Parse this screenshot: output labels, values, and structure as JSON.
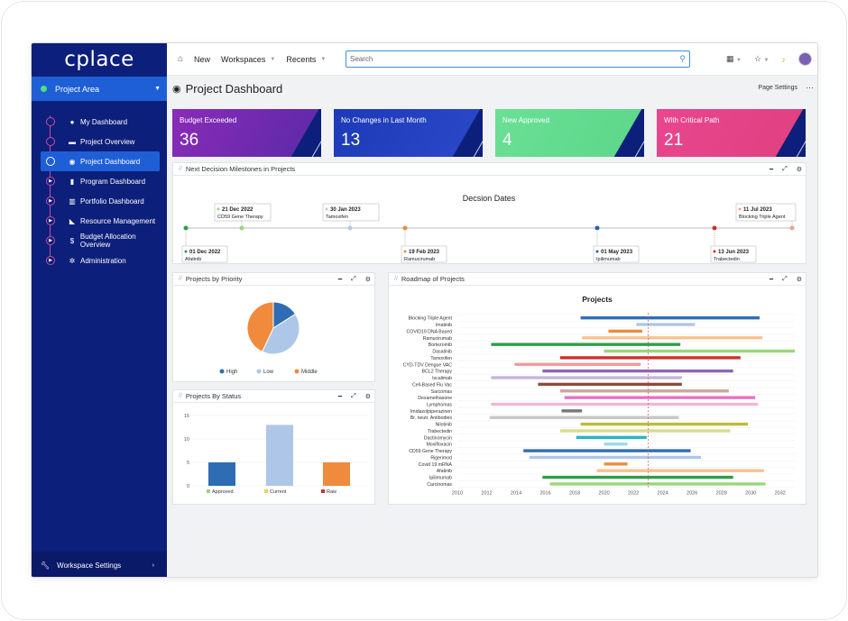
{
  "app": {
    "logo": "cplace"
  },
  "sidebar": {
    "area_label": "Project Area",
    "items": [
      {
        "label": "My Dashboard",
        "icon": "user-circle-icon",
        "ico": "●"
      },
      {
        "label": "Project Overview",
        "icon": "folder-icon",
        "ico": "▬"
      },
      {
        "label": "Project Dashboard",
        "icon": "gauge-icon",
        "ico": "◉",
        "active": true
      },
      {
        "label": "Program Dashboard",
        "icon": "book-icon",
        "ico": "▮"
      },
      {
        "label": "Portfolio Dashboard",
        "icon": "binders-icon",
        "ico": "▥"
      },
      {
        "label": "Resource Management",
        "icon": "area-chart-icon",
        "ico": "◣"
      },
      {
        "label": "Budget Allocation Overview",
        "icon": "dollar-icon",
        "ico": "$"
      },
      {
        "label": "Administration",
        "icon": "gears-icon",
        "ico": "✲"
      }
    ],
    "workspace_settings": "Workspace Settings"
  },
  "topbar": {
    "new": "New",
    "workspaces": "Workspaces",
    "recents": "Recents",
    "search_placeholder": "Search"
  },
  "page": {
    "title": "Project Dashboard",
    "settings": "Page Settings"
  },
  "kpis": [
    {
      "label": "Budget Exceeded",
      "value": "36",
      "color": "#8a2bb8",
      "color2": "#5a2aa8"
    },
    {
      "label": "No Changes in Last Month",
      "value": "13",
      "color": "#1d3ab8",
      "color2": "#2a49c8"
    },
    {
      "label": "New Approved",
      "value": "4",
      "color": "#6ae095",
      "color2": "#5cd68a"
    },
    {
      "label": "With Critical Path",
      "value": "21",
      "color": "#e8468f",
      "color2": "#e0407f"
    }
  ],
  "milestones": {
    "panel_title": "Next Decision Milestones in Projects",
    "chart_title": "Decsion Dates",
    "above": [
      {
        "date": "21 Dec 2022",
        "name": "CD59 Gene Therapy",
        "color": "#9ad67a"
      },
      {
        "date": "30 Jan 2023",
        "name": "Tamoxifen",
        "color": "#b5c8e8"
      },
      {
        "date": "11 Jul 2023",
        "name": "Blocking Triple Agent",
        "color": "#f3a08a"
      }
    ],
    "below": [
      {
        "date": "01 Dec 2022",
        "name": "Afatinib",
        "color": "#2e9e4a"
      },
      {
        "date": "19 Feb 2023",
        "name": "Ramucirumab",
        "color": "#f08a3c"
      },
      {
        "date": "01 May 2023",
        "name": "Ipilimumab",
        "color": "#2c5fb0"
      },
      {
        "date": "13 Jun 2023",
        "name": "Trabectedin",
        "color": "#c8332e"
      }
    ]
  },
  "priority": {
    "panel_title": "Projects by Priority",
    "legend": [
      "High",
      "Low",
      "Middle"
    ]
  },
  "status": {
    "panel_title": "Projects By Status",
    "legend": [
      "Approved",
      "Current",
      "Raw"
    ]
  },
  "roadmap": {
    "panel_title": "Roadmap of Projects"
  },
  "chart_data": [
    {
      "type": "pie",
      "labels": [
        "High",
        "Low",
        "Middle"
      ],
      "values": [
        16,
        41,
        43
      ],
      "colors": [
        "#2e6db3",
        "#aec7e8",
        "#f08a3c"
      ]
    },
    {
      "type": "bar",
      "categories": [
        "Approved",
        "Current",
        "Raw"
      ],
      "values": [
        5,
        13,
        5
      ],
      "colors": [
        "#2e6db3",
        "#aec7e8",
        "#f08a3c"
      ],
      "yticks": [
        0,
        5,
        10,
        15
      ],
      "ylim": [
        0,
        15
      ]
    },
    {
      "type": "bar",
      "title": "Projects",
      "xticks": [
        2010,
        2012,
        2014,
        2016,
        2018,
        2020,
        2022,
        2024,
        2026,
        2028,
        2030,
        2032
      ],
      "xlim": [
        2010,
        2033
      ],
      "today": 2023.0,
      "series": [
        {
          "name": "Blocking Triple Agent",
          "start": 2018.4,
          "end": 2030.6,
          "color": "#2e6db3"
        },
        {
          "name": "Imatinib",
          "start": 2022.2,
          "end": 2026.2,
          "color": "#aec7e8"
        },
        {
          "name": "COVID19 DNA Based",
          "start": 2020.3,
          "end": 2022.6,
          "color": "#f08a3c"
        },
        {
          "name": "Ramucirumab",
          "start": 2018.5,
          "end": 2030.8,
          "color": "#f8c291"
        },
        {
          "name": "Bortezomib",
          "start": 2012.3,
          "end": 2025.2,
          "color": "#2e9e4a"
        },
        {
          "name": "Dasatinib",
          "start": 2020.0,
          "end": 2033.0,
          "color": "#9ad67a"
        },
        {
          "name": "Tamoxifen",
          "start": 2017.0,
          "end": 2029.3,
          "color": "#c8332e"
        },
        {
          "name": "CYD-TDV Dengue VAC",
          "start": 2013.9,
          "end": 2022.5,
          "color": "#f39a9a"
        },
        {
          "name": "BCL2 Therapy",
          "start": 2015.8,
          "end": 2028.8,
          "color": "#8e67b5"
        },
        {
          "name": "Iscalimab",
          "start": 2012.3,
          "end": 2025.3,
          "color": "#c6b4dc"
        },
        {
          "name": "Cell-Based Flu Vac",
          "start": 2015.5,
          "end": 2025.3,
          "color": "#8c4a3d"
        },
        {
          "name": "Sarcomas",
          "start": 2017.0,
          "end": 2028.5,
          "color": "#c9a8a0"
        },
        {
          "name": "Dexamethasone",
          "start": 2017.3,
          "end": 2030.3,
          "color": "#e872c4"
        },
        {
          "name": "Lymphomas",
          "start": 2012.3,
          "end": 2030.5,
          "color": "#f2b6d6"
        },
        {
          "name": "Imidazolpiperazinen",
          "start": 2017.1,
          "end": 2018.5,
          "color": "#777777"
        },
        {
          "name": "Br. neutr. Antibodies",
          "start": 2012.2,
          "end": 2025.1,
          "color": "#c7c7c7"
        },
        {
          "name": "Nilotinib",
          "start": 2018.4,
          "end": 2029.8,
          "color": "#bcbd3a"
        },
        {
          "name": "Trabectedin",
          "start": 2017.0,
          "end": 2028.6,
          "color": "#dbdb8d"
        },
        {
          "name": "Dactinomycin",
          "start": 2018.1,
          "end": 2022.9,
          "color": "#2ab4c7"
        },
        {
          "name": "Moxifloxacin",
          "start": 2020.0,
          "end": 2021.6,
          "color": "#9edae5"
        },
        {
          "name": "CD59 Gene Therapy",
          "start": 2014.5,
          "end": 2025.9,
          "color": "#2e6db3"
        },
        {
          "name": "Rigerimod",
          "start": 2014.9,
          "end": 2026.6,
          "color": "#aec7e8"
        },
        {
          "name": "Covid 19 mRNA",
          "start": 2020.0,
          "end": 2021.6,
          "color": "#f08a3c"
        },
        {
          "name": "Afatinib",
          "start": 2019.5,
          "end": 2030.9,
          "color": "#f8c291"
        },
        {
          "name": "Ipilimumab",
          "start": 2015.8,
          "end": 2028.8,
          "color": "#2e9e4a"
        },
        {
          "name": "Carcinomas",
          "start": 2016.3,
          "end": 2031.0,
          "color": "#9ad67a"
        }
      ]
    }
  ]
}
